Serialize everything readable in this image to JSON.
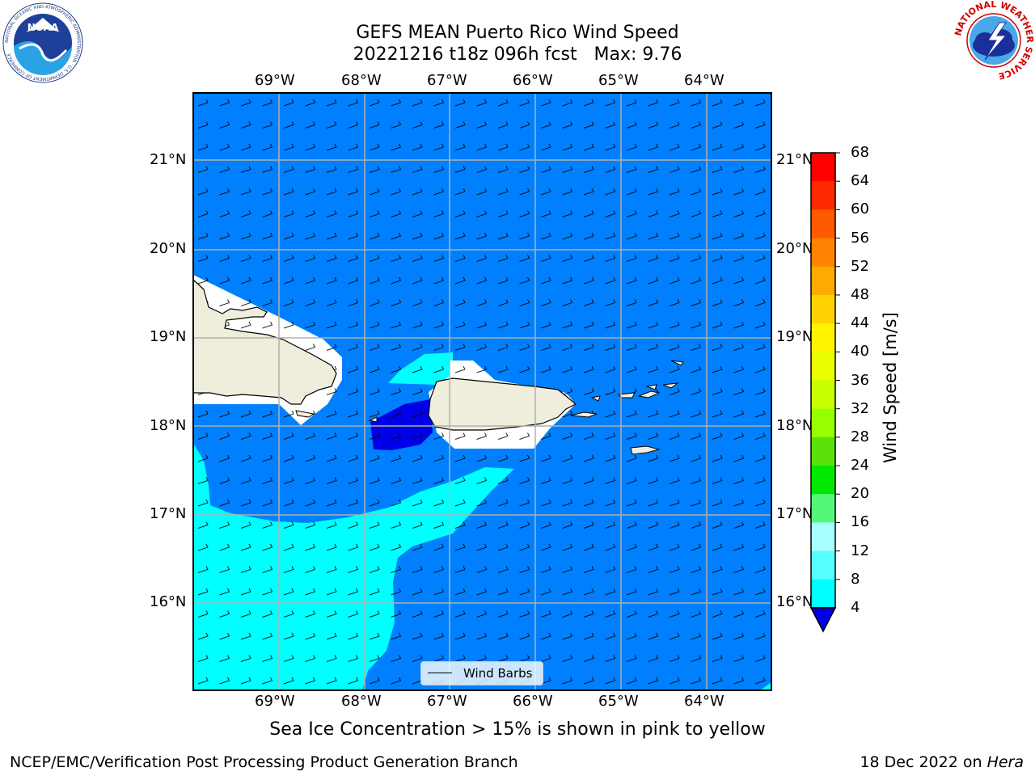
{
  "header": {
    "title_line1": "GEFS MEAN Puerto Rico Wind Speed",
    "title_line2": "20221216 t18z 096h fcst   Max: 9.76"
  },
  "logos": {
    "noaa_text": "NOAA",
    "noaa_ring_text": "NATIONAL OCEANIC AND ATMOSPHERIC ADMINISTRATION · U.S. DEPARTMENT OF COMMERCE",
    "nws_ring_text": "NATIONAL WEATHER SERVICE"
  },
  "map": {
    "lon_labels": [
      "69°W",
      "68°W",
      "67°W",
      "66°W",
      "65°W",
      "64°W"
    ],
    "lat_labels": [
      "21°N",
      "20°N",
      "19°N",
      "18°N",
      "17°N",
      "16°N"
    ],
    "legend_label": "Wind Barbs"
  },
  "colorbar": {
    "label": "Wind Speed [m/s]",
    "ticks": [
      "68",
      "64",
      "60",
      "56",
      "52",
      "48",
      "44",
      "40",
      "36",
      "32",
      "28",
      "24",
      "20",
      "16",
      "12",
      "8",
      "4"
    ],
    "colors": [
      "#ff0000",
      "#ff2a00",
      "#ff5a00",
      "#ff8200",
      "#ffaa00",
      "#ffd200",
      "#fff500",
      "#ebff00",
      "#c8ff00",
      "#96ff00",
      "#5ae10a",
      "#00e800",
      "#55f77a",
      "#a8ffff",
      "#55ffff",
      "#00ffff",
      "#0080ff"
    ],
    "extend_color": "#0000e6"
  },
  "caption": "Sea Ice Concentration > 15% is shown in pink to yellow",
  "footer": {
    "left": "NCEP/EMC/Verification Post Processing Product Generation Branch",
    "right_prefix": "18 Dec 2022 on ",
    "right_machine": "Hera"
  }
}
